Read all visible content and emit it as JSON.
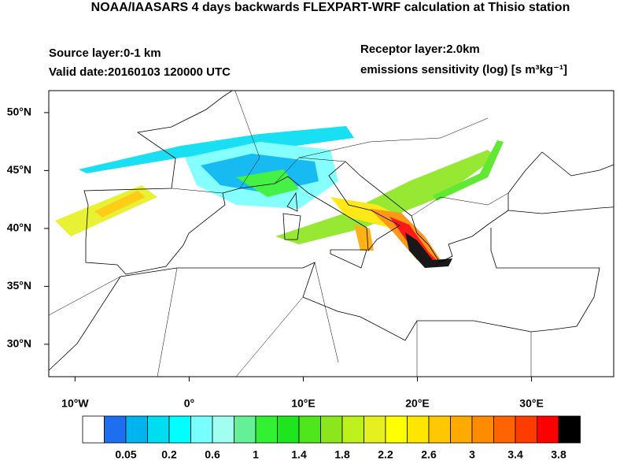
{
  "header": {
    "title": "NOAA/IAASARS 4 days backwards FLEXPART-WRF calculation at Thisio station",
    "source_layer": "Source layer:0-1 km",
    "valid_date": "Valid date:20160103 120000 UTC",
    "receptor_layer": "Receptor layer:2.0km",
    "units": "emissions sensitivity (log) [s m³kg⁻¹]"
  },
  "map": {
    "lon_range": [
      -12.3,
      37.2
    ],
    "lat_range": [
      27.2,
      51.9
    ],
    "lon_ticks": [
      {
        "value": -10,
        "label": "10°W"
      },
      {
        "value": 0,
        "label": "0°"
      },
      {
        "value": 10,
        "label": "10°E"
      },
      {
        "value": 20,
        "label": "20°E"
      },
      {
        "value": 30,
        "label": "30°E"
      }
    ],
    "lat_ticks": [
      {
        "value": 50,
        "label": "50°N"
      },
      {
        "value": 45,
        "label": "45°N"
      },
      {
        "value": 40,
        "label": "40°N"
      },
      {
        "value": 35,
        "label": "35°N"
      },
      {
        "value": 30,
        "label": "30°N"
      }
    ]
  },
  "colorbar": {
    "colors": [
      "#ffffff",
      "#1e6ef0",
      "#00b4f0",
      "#00dcf0",
      "#00ffff",
      "#78ffff",
      "#a0fff0",
      "#64f096",
      "#32f032",
      "#1ee61e",
      "#50e61e",
      "#8ce61e",
      "#bef01e",
      "#e6f01e",
      "#ffff00",
      "#ffe600",
      "#ffc800",
      "#ffaa00",
      "#ff8c00",
      "#ff6400",
      "#ff3c00",
      "#ff0000",
      "#000000"
    ],
    "labels": [
      0.05,
      0.2,
      0.6,
      1,
      1.4,
      1.8,
      2.2,
      2.6,
      3,
      3.4,
      3.8
    ]
  }
}
